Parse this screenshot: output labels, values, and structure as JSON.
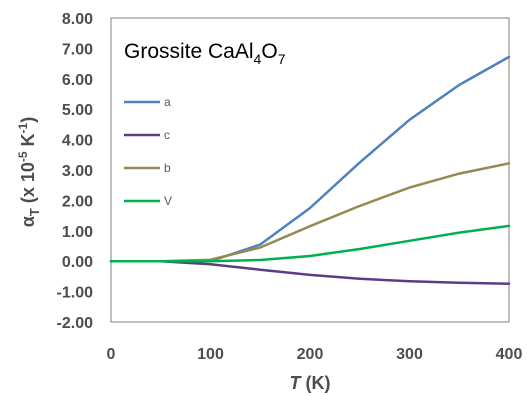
{
  "chart_data": {
    "type": "line",
    "title": "",
    "annotation": {
      "base": "Grossite CaAl",
      "sub1": "4",
      "mid": "O",
      "sub2": "7"
    },
    "xlabel": {
      "italic": "T",
      "rest": " (K)"
    },
    "ylabel": {
      "alpha": "α",
      "alpha_sub": "T",
      "mid": " (x 10",
      "exp": "-5",
      "after": " K",
      "exp2": "-1",
      "close": ")"
    },
    "xlim": [
      0,
      400
    ],
    "ylim": [
      -2,
      8
    ],
    "xticks": [
      "0",
      "100",
      "200",
      "300",
      "400"
    ],
    "yticks": [
      "-2.00",
      "-1.00",
      "0.00",
      "1.00",
      "2.00",
      "3.00",
      "4.00",
      "5.00",
      "6.00",
      "7.00",
      "8.00"
    ],
    "grid": false,
    "legend_position": "left",
    "x": [
      0,
      50,
      100,
      150,
      200,
      250,
      300,
      350,
      400
    ],
    "series": [
      {
        "name": "a",
        "color": "#4f81bd",
        "values": [
          0,
          0,
          0,
          0.55,
          1.75,
          3.25,
          4.65,
          5.8,
          6.72
        ]
      },
      {
        "name": "c",
        "color": "#5b3d87",
        "values": [
          0,
          0,
          -0.1,
          -0.28,
          -0.45,
          -0.58,
          -0.66,
          -0.71,
          -0.74
        ]
      },
      {
        "name": "b",
        "color": "#948a54",
        "values": [
          0,
          0,
          0.05,
          0.45,
          1.15,
          1.82,
          2.42,
          2.88,
          3.22
        ]
      },
      {
        "name": "V",
        "color": "#00b050",
        "values": [
          0,
          0,
          0,
          0.04,
          0.17,
          0.4,
          0.67,
          0.94,
          1.16
        ]
      }
    ]
  }
}
